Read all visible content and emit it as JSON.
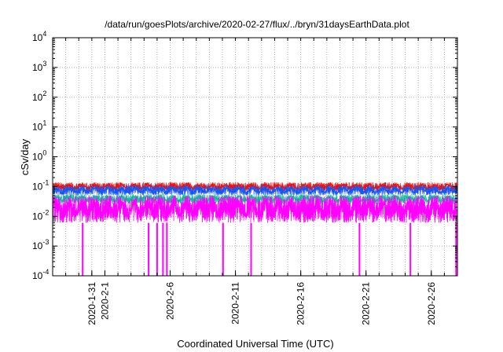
{
  "chart_data": {
    "type": "line",
    "title": "/data/run/goesPlots/archive/2020-02-27/flux/../bryn/31daysEarthData.plot",
    "xlabel": "Coordinated Universal Time (UTC)",
    "ylabel": "cSv/day",
    "yscale": "log",
    "ylim": [
      0.0001,
      10000
    ],
    "y_ticks": [
      {
        "base": "10",
        "exp": "-4",
        "value": 0.0001
      },
      {
        "base": "10",
        "exp": "-3",
        "value": 0.001
      },
      {
        "base": "10",
        "exp": "-2",
        "value": 0.01
      },
      {
        "base": "10",
        "exp": "-1",
        "value": 0.1
      },
      {
        "base": "10",
        "exp": "0",
        "value": 1
      },
      {
        "base": "10",
        "exp": "1",
        "value": 10
      },
      {
        "base": "10",
        "exp": "2",
        "value": 100
      },
      {
        "base": "10",
        "exp": "3",
        "value": 1000
      },
      {
        "base": "10",
        "exp": "4",
        "value": 10000
      }
    ],
    "xlim": [
      "2020-01-28",
      "2020-02-28"
    ],
    "x_ticks": [
      "2020-1-31",
      "2020-2-1",
      "2020-2-6",
      "2020-2-11",
      "2020-2-16",
      "2020-2-21",
      "2020-2-26"
    ],
    "x_tick_dates": [
      "2020-01-31",
      "2020-02-01",
      "2020-02-06",
      "2020-02-11",
      "2020-02-16",
      "2020-02-21",
      "2020-02-26"
    ],
    "grid": true,
    "series": [
      {
        "color": "#ee1111",
        "typical": 0.1,
        "min": 0.07,
        "max": 0.14
      },
      {
        "color": "#1a55ee",
        "typical": 0.075,
        "min": 0.05,
        "max": 0.11
      },
      {
        "color": "#11bb99",
        "typical": 0.04,
        "min": 0.025,
        "max": 0.055
      },
      {
        "color": "#ff00ff",
        "typical": 0.018,
        "min": 0.006,
        "max": 0.05
      }
    ],
    "magenta_dropouts": [
      "2020-01-30",
      "2020-02-04",
      "2020-02-05",
      "2020-02-05",
      "2020-02-05",
      "2020-02-10",
      "2020-02-12",
      "2020-02-20",
      "2020-02-24",
      "2020-02-27"
    ]
  }
}
